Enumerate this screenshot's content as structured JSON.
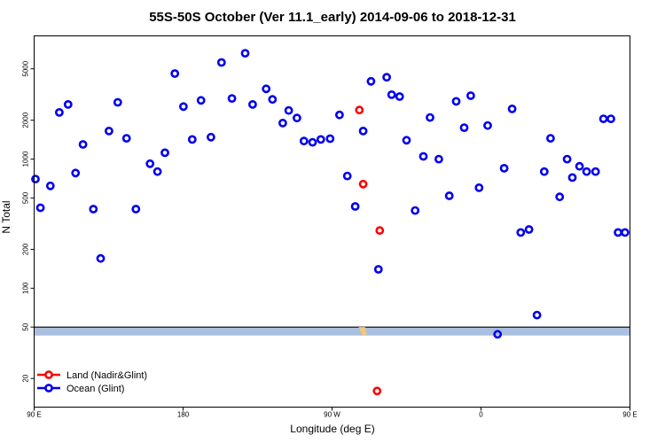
{
  "chart_data": {
    "type": "scatter",
    "title": "55S-50S October (Ver 11.1_early)   2014-09-06 to 2018-12-31",
    "xlabel": "Longitude (deg E)",
    "ylabel": "N Total",
    "y_scale": "log",
    "xlim": [
      90,
      450
    ],
    "ylim": [
      12,
      9000
    ],
    "x_ticks": [
      {
        "value": 90,
        "label": "90 E"
      },
      {
        "value": 180,
        "label": "180"
      },
      {
        "value": 270,
        "label": "90 W"
      },
      {
        "value": 360,
        "label": "0"
      },
      {
        "value": 450,
        "label": "90 E"
      },
      {
        "value": 540,
        "label": "180"
      }
    ],
    "y_ticks": [
      20,
      50,
      100,
      200,
      500,
      1000,
      2000,
      5000
    ],
    "grid": false,
    "legend_position": "bottom-left",
    "map_band_y": [
      43,
      50
    ],
    "series": [
      {
        "name": "Land (Nadir&Glint)",
        "color": "#ff0000",
        "points": [
          {
            "x": 286.5,
            "y": 2400
          },
          {
            "x": 288.8,
            "y": 640
          },
          {
            "x": 298.8,
            "y": 280
          },
          {
            "x": 297.2,
            "y": 16
          }
        ]
      },
      {
        "name": "Ocean (Glint)",
        "color": "#0000ee",
        "points": [
          {
            "x": 90.8,
            "y": 700
          },
          {
            "x": 93.8,
            "y": 420
          },
          {
            "x": 99.8,
            "y": 620
          },
          {
            "x": 105.2,
            "y": 2300
          },
          {
            "x": 110.5,
            "y": 2650
          },
          {
            "x": 115.0,
            "y": 780
          },
          {
            "x": 119.5,
            "y": 1300
          },
          {
            "x": 125.8,
            "y": 410
          },
          {
            "x": 130.2,
            "y": 170
          },
          {
            "x": 135.2,
            "y": 1650
          },
          {
            "x": 140.5,
            "y": 2750
          },
          {
            "x": 145.8,
            "y": 1450
          },
          {
            "x": 151.5,
            "y": 410
          },
          {
            "x": 160.0,
            "y": 920
          },
          {
            "x": 164.5,
            "y": 800
          },
          {
            "x": 169.0,
            "y": 1120
          },
          {
            "x": 175.0,
            "y": 4600
          },
          {
            "x": 180.2,
            "y": 2550
          },
          {
            "x": 185.5,
            "y": 1420
          },
          {
            "x": 190.8,
            "y": 2850
          },
          {
            "x": 196.8,
            "y": 1480
          },
          {
            "x": 203.2,
            "y": 5600
          },
          {
            "x": 209.5,
            "y": 2950
          },
          {
            "x": 217.5,
            "y": 6600
          },
          {
            "x": 222.0,
            "y": 2650
          },
          {
            "x": 230.2,
            "y": 3500
          },
          {
            "x": 234.0,
            "y": 2900
          },
          {
            "x": 240.2,
            "y": 1900
          },
          {
            "x": 243.8,
            "y": 2380
          },
          {
            "x": 248.8,
            "y": 2080
          },
          {
            "x": 253.0,
            "y": 1380
          },
          {
            "x": 258.2,
            "y": 1350
          },
          {
            "x": 263.2,
            "y": 1420
          },
          {
            "x": 268.8,
            "y": 1440
          },
          {
            "x": 274.5,
            "y": 2200
          },
          {
            "x": 279.2,
            "y": 740
          },
          {
            "x": 284.0,
            "y": 430
          },
          {
            "x": 288.8,
            "y": 1650
          },
          {
            "x": 293.5,
            "y": 4000
          },
          {
            "x": 298.0,
            "y": 140
          },
          {
            "x": 303.0,
            "y": 4300
          },
          {
            "x": 306.0,
            "y": 3150
          },
          {
            "x": 310.8,
            "y": 3050
          },
          {
            "x": 315.0,
            "y": 1400
          },
          {
            "x": 320.2,
            "y": 400
          },
          {
            "x": 325.2,
            "y": 1050
          },
          {
            "x": 329.2,
            "y": 2100
          },
          {
            "x": 334.5,
            "y": 1000
          },
          {
            "x": 340.8,
            "y": 520
          },
          {
            "x": 345.0,
            "y": 2800
          },
          {
            "x": 349.8,
            "y": 1750
          },
          {
            "x": 353.8,
            "y": 3100
          },
          {
            "x": 358.8,
            "y": 600
          },
          {
            "x": 364.0,
            "y": 1820
          },
          {
            "x": 370.0,
            "y": 44
          },
          {
            "x": 374.0,
            "y": 850
          },
          {
            "x": 378.8,
            "y": 2450
          },
          {
            "x": 384.0,
            "y": 270
          },
          {
            "x": 389.0,
            "y": 285
          },
          {
            "x": 393.8,
            "y": 62
          },
          {
            "x": 398.2,
            "y": 800
          },
          {
            "x": 402.0,
            "y": 1450
          },
          {
            "x": 407.5,
            "y": 510
          },
          {
            "x": 412.0,
            "y": 1000
          },
          {
            "x": 415.2,
            "y": 720
          },
          {
            "x": 419.5,
            "y": 880
          },
          {
            "x": 423.8,
            "y": 800
          },
          {
            "x": 429.2,
            "y": 800
          },
          {
            "x": 434.0,
            "y": 2050
          },
          {
            "x": 438.5,
            "y": 2050
          },
          {
            "x": 442.8,
            "y": 270
          },
          {
            "x": 447.0,
            "y": 270
          }
        ]
      }
    ]
  }
}
